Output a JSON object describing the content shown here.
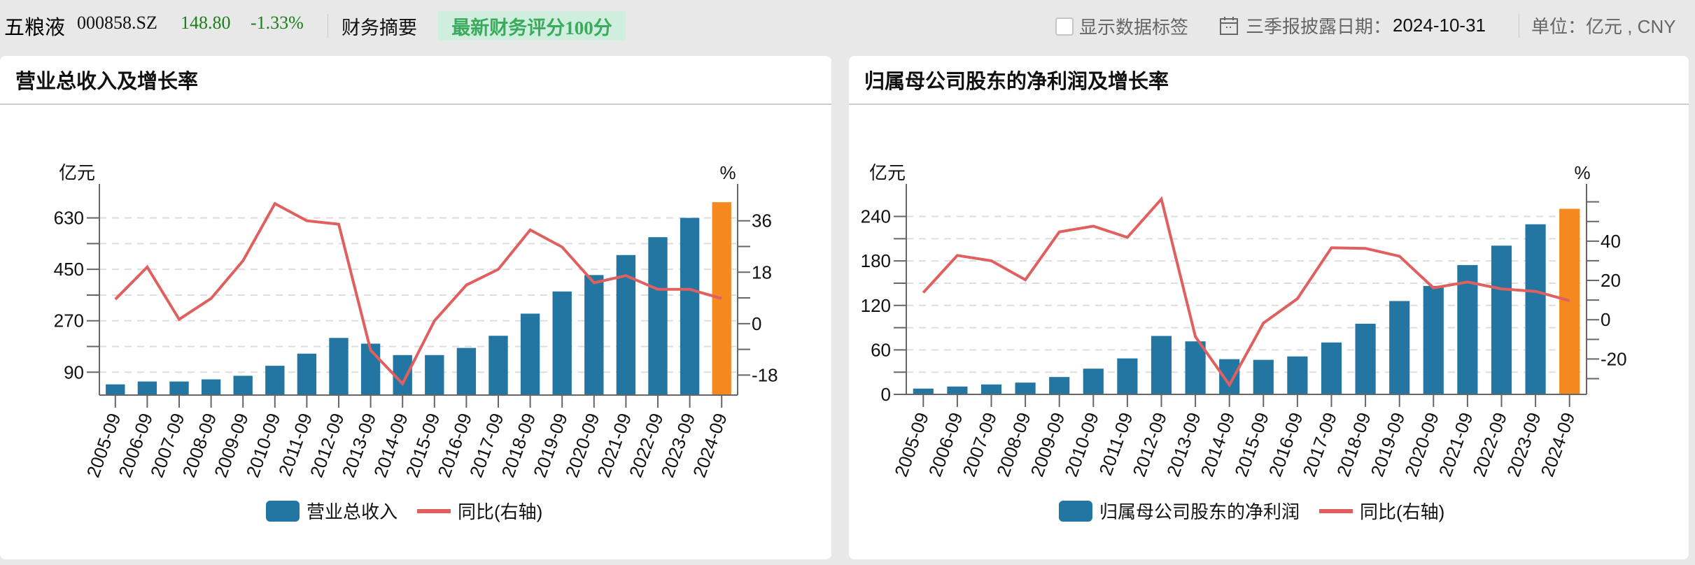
{
  "header": {
    "stock_name": "五粮液",
    "stock_code": "000858.SZ",
    "price": "148.80",
    "change_pct": "-1.33%",
    "summary_label": "财务摘要",
    "score_badge": "最新财务评分100分",
    "show_labels_toggle": "显示数据标签",
    "show_labels_checked": false,
    "disclosure_label": "三季报披露日期：",
    "disclosure_date": "2024-10-31",
    "unit_text": "单位：亿元 , CNY",
    "colors": {
      "price": "#1a7f1a",
      "badge_bg": "#cfeedd",
      "badge_text": "#3aaa5c"
    }
  },
  "panels": [
    {
      "title": "营业总收入及增长率"
    },
    {
      "title": "归属母公司股东的净利润及增长率"
    }
  ],
  "chart_data": [
    {
      "type": "bar+line",
      "title": "营业总收入及增长率",
      "categories": [
        "2005-09",
        "2006-09",
        "2007-09",
        "2008-09",
        "2009-09",
        "2010-09",
        "2011-09",
        "2012-09",
        "2013-09",
        "2014-09",
        "2015-09",
        "2016-09",
        "2017-09",
        "2018-09",
        "2019-09",
        "2020-09",
        "2021-09",
        "2022-09",
        "2023-09",
        "2024-09"
      ],
      "y_left_label": "亿元",
      "y_right_label": "%",
      "y_left_ticks": [
        90,
        270,
        450,
        630
      ],
      "y_left_range": [
        10,
        700
      ],
      "y_right_ticks": [
        -18,
        0,
        18,
        36
      ],
      "y_right_range": [
        -25,
        44
      ],
      "series": [
        {
          "name": "营业总收入",
          "kind": "bar",
          "axis": "left",
          "color": "#2376a2",
          "highlight_last_color": "#f5891f",
          "values": [
            47.5,
            57.5,
            57.5,
            65,
            77.5,
            112.5,
            155,
            210,
            190,
            150,
            150,
            175,
            217.5,
            295,
            372.5,
            430,
            500,
            562.5,
            630,
            685
          ]
        },
        {
          "name": "同比(右轴)",
          "kind": "line",
          "axis": "right",
          "color": "#e06060",
          "values": [
            8.5,
            19.8,
            1.5,
            8.8,
            22,
            42,
            36,
            34.8,
            -9.3,
            -21,
            1,
            13.5,
            19,
            32.8,
            26.8,
            14.3,
            16.8,
            12,
            12,
            8.8
          ]
        }
      ],
      "legend": [
        "营业总收入",
        "同比(右轴)"
      ],
      "grid": true
    },
    {
      "type": "bar+line",
      "title": "归属母公司股东的净利润及增长率",
      "categories": [
        "2005-09",
        "2006-09",
        "2007-09",
        "2008-09",
        "2009-09",
        "2010-09",
        "2011-09",
        "2012-09",
        "2013-09",
        "2014-09",
        "2015-09",
        "2016-09",
        "2017-09",
        "2018-09",
        "2019-09",
        "2020-09",
        "2021-09",
        "2022-09",
        "2023-09",
        "2024-09"
      ],
      "y_left_label": "亿元",
      "y_right_label": "%",
      "y_left_ticks": [
        0,
        60,
        120,
        180,
        240
      ],
      "y_left_range": [
        0,
        265
      ],
      "y_right_ticks": [
        -20,
        0,
        20,
        40
      ],
      "y_right_range": [
        -38,
        62
      ],
      "series": [
        {
          "name": "归属母公司股东的净利润",
          "kind": "bar",
          "axis": "left",
          "color": "#2376a2",
          "highlight_last_color": "#f5891f",
          "values": [
            7.8,
            10.6,
            13.4,
            15.9,
            23.4,
            34.7,
            48.5,
            78.8,
            71.5,
            47.5,
            46.6,
            51.2,
            70,
            95.3,
            125.9,
            146.3,
            174.4,
            200.6,
            229.4,
            250.3
          ]
        },
        {
          "name": "同比(右轴)",
          "kind": "line",
          "axis": "right",
          "color": "#e06060",
          "values": [
            13.8,
            32.7,
            30,
            20.3,
            44.7,
            47.6,
            41.9,
            61.4,
            -8.6,
            -33.2,
            -1.7,
            10.7,
            36.6,
            36.3,
            32.3,
            16.2,
            19.2,
            15.7,
            14.4,
            9.7
          ]
        }
      ],
      "legend": [
        "归属母公司股东的净利润",
        "同比(右轴)"
      ],
      "grid": true
    }
  ]
}
